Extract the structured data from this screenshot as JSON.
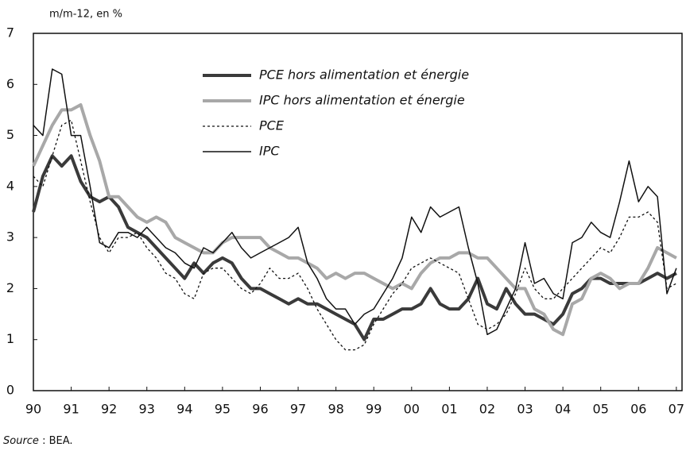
{
  "chart_data": {
    "type": "line",
    "y_unit_label": "m/m-12, en %",
    "source_label": "Source",
    "source_text": " : BEA.",
    "x": [
      1990,
      1990.25,
      1990.5,
      1990.75,
      1991,
      1991.25,
      1991.5,
      1991.75,
      1992,
      1992.25,
      1992.5,
      1992.75,
      1993,
      1993.25,
      1993.5,
      1993.75,
      1994,
      1994.25,
      1994.5,
      1994.75,
      1995,
      1995.25,
      1995.5,
      1995.75,
      1996,
      1996.25,
      1996.5,
      1996.75,
      1997,
      1997.25,
      1997.5,
      1997.75,
      1998,
      1998.25,
      1998.5,
      1998.75,
      1999,
      1999.25,
      1999.5,
      1999.75,
      2000,
      2000.25,
      2000.5,
      2000.75,
      2001,
      2001.25,
      2001.5,
      2001.75,
      2002,
      2002.25,
      2002.5,
      2002.75,
      2003,
      2003.25,
      2003.5,
      2003.75,
      2004,
      2004.25,
      2004.5,
      2004.75,
      2005,
      2005.25,
      2005.5,
      2005.75,
      2006,
      2006.25,
      2006.5,
      2006.75,
      2007
    ],
    "series": [
      {
        "name": "PCE hors alimentation et énergie",
        "color": "#3a3a3a",
        "linewidth": 4,
        "linestyle": "solid",
        "values": [
          3.5,
          4.2,
          4.6,
          4.4,
          4.6,
          4.1,
          3.8,
          3.7,
          3.8,
          3.6,
          3.2,
          3.1,
          3.0,
          2.8,
          2.6,
          2.4,
          2.2,
          2.5,
          2.3,
          2.5,
          2.6,
          2.5,
          2.2,
          2.0,
          2.0,
          1.9,
          1.8,
          1.7,
          1.8,
          1.7,
          1.7,
          1.6,
          1.5,
          1.4,
          1.3,
          1.0,
          1.4,
          1.4,
          1.5,
          1.6,
          1.6,
          1.7,
          2.0,
          1.7,
          1.6,
          1.6,
          1.8,
          2.2,
          1.7,
          1.6,
          2.0,
          1.7,
          1.5,
          1.5,
          1.4,
          1.3,
          1.5,
          1.9,
          2.0,
          2.2,
          2.2,
          2.1,
          2.1,
          2.1,
          2.1,
          2.2,
          2.3,
          2.2,
          2.3
        ]
      },
      {
        "name": "IPC hors alimentation et énergie",
        "color": "#a8a8a8",
        "linewidth": 4,
        "linestyle": "solid",
        "values": [
          4.4,
          4.8,
          5.2,
          5.5,
          5.5,
          5.6,
          5.0,
          4.5,
          3.8,
          3.8,
          3.6,
          3.4,
          3.3,
          3.4,
          3.3,
          3.0,
          2.9,
          2.8,
          2.7,
          2.7,
          2.9,
          3.0,
          3.0,
          3.0,
          3.0,
          2.8,
          2.7,
          2.6,
          2.6,
          2.5,
          2.4,
          2.2,
          2.3,
          2.2,
          2.3,
          2.3,
          2.2,
          2.1,
          2.0,
          2.1,
          2.0,
          2.3,
          2.5,
          2.6,
          2.6,
          2.7,
          2.7,
          2.6,
          2.6,
          2.4,
          2.2,
          2.0,
          2.0,
          1.6,
          1.5,
          1.2,
          1.1,
          1.7,
          1.8,
          2.2,
          2.3,
          2.2,
          2.0,
          2.1,
          2.1,
          2.4,
          2.8,
          2.7,
          2.6
        ]
      },
      {
        "name": "PCE",
        "color": "#111111",
        "linewidth": 1.3,
        "linestyle": "dotted",
        "values": [
          4.2,
          4.0,
          4.6,
          5.2,
          5.3,
          4.5,
          3.7,
          3.0,
          2.7,
          3.0,
          3.0,
          3.1,
          2.8,
          2.6,
          2.3,
          2.2,
          1.9,
          1.8,
          2.3,
          2.4,
          2.4,
          2.2,
          2.0,
          1.9,
          2.1,
          2.4,
          2.2,
          2.2,
          2.3,
          2.0,
          1.6,
          1.3,
          1.0,
          0.8,
          0.8,
          0.9,
          1.3,
          1.6,
          1.9,
          2.1,
          2.4,
          2.5,
          2.6,
          2.5,
          2.4,
          2.3,
          1.8,
          1.3,
          1.2,
          1.3,
          1.5,
          1.9,
          2.4,
          2.0,
          1.8,
          1.8,
          2.0,
          2.2,
          2.4,
          2.6,
          2.8,
          2.7,
          3.0,
          3.4,
          3.4,
          3.5,
          3.3,
          2.0,
          2.1
        ]
      },
      {
        "name": "IPC",
        "color": "#111111",
        "linewidth": 1.5,
        "linestyle": "solid",
        "values": [
          5.2,
          5.0,
          6.3,
          6.2,
          5.0,
          5.0,
          4.0,
          2.9,
          2.8,
          3.1,
          3.1,
          3.0,
          3.2,
          3.0,
          2.8,
          2.7,
          2.5,
          2.4,
          2.8,
          2.7,
          2.9,
          3.1,
          2.8,
          2.6,
          2.7,
          2.8,
          2.9,
          3.0,
          3.2,
          2.5,
          2.2,
          1.8,
          1.6,
          1.6,
          1.3,
          1.5,
          1.6,
          1.9,
          2.2,
          2.6,
          3.4,
          3.1,
          3.6,
          3.4,
          3.5,
          3.6,
          2.8,
          2.1,
          1.1,
          1.2,
          1.6,
          2.0,
          2.9,
          2.1,
          2.2,
          1.9,
          1.8,
          2.9,
          3.0,
          3.3,
          3.1,
          3.0,
          3.7,
          4.5,
          3.7,
          4.0,
          3.8,
          1.9,
          2.4
        ]
      }
    ],
    "xlim": [
      1990,
      2007.15
    ],
    "xticks": [
      {
        "value": 1990,
        "label": "90"
      },
      {
        "value": 1991,
        "label": "91"
      },
      {
        "value": 1992,
        "label": "92"
      },
      {
        "value": 1993,
        "label": "93"
      },
      {
        "value": 1994,
        "label": "94"
      },
      {
        "value": 1995,
        "label": "95"
      },
      {
        "value": 1996,
        "label": "96"
      },
      {
        "value": 1997,
        "label": "97"
      },
      {
        "value": 1998,
        "label": "98"
      },
      {
        "value": 1999,
        "label": "99"
      },
      {
        "value": 2000,
        "label": "00"
      },
      {
        "value": 2001,
        "label": "01"
      },
      {
        "value": 2002,
        "label": "02"
      },
      {
        "value": 2003,
        "label": "03"
      },
      {
        "value": 2004,
        "label": "04"
      },
      {
        "value": 2005,
        "label": "05"
      },
      {
        "value": 2006,
        "label": "06"
      },
      {
        "value": 2007,
        "label": "07"
      }
    ],
    "ylim": [
      0,
      7
    ],
    "yticks": [
      0,
      1,
      2,
      3,
      4,
      5,
      6,
      7
    ]
  }
}
